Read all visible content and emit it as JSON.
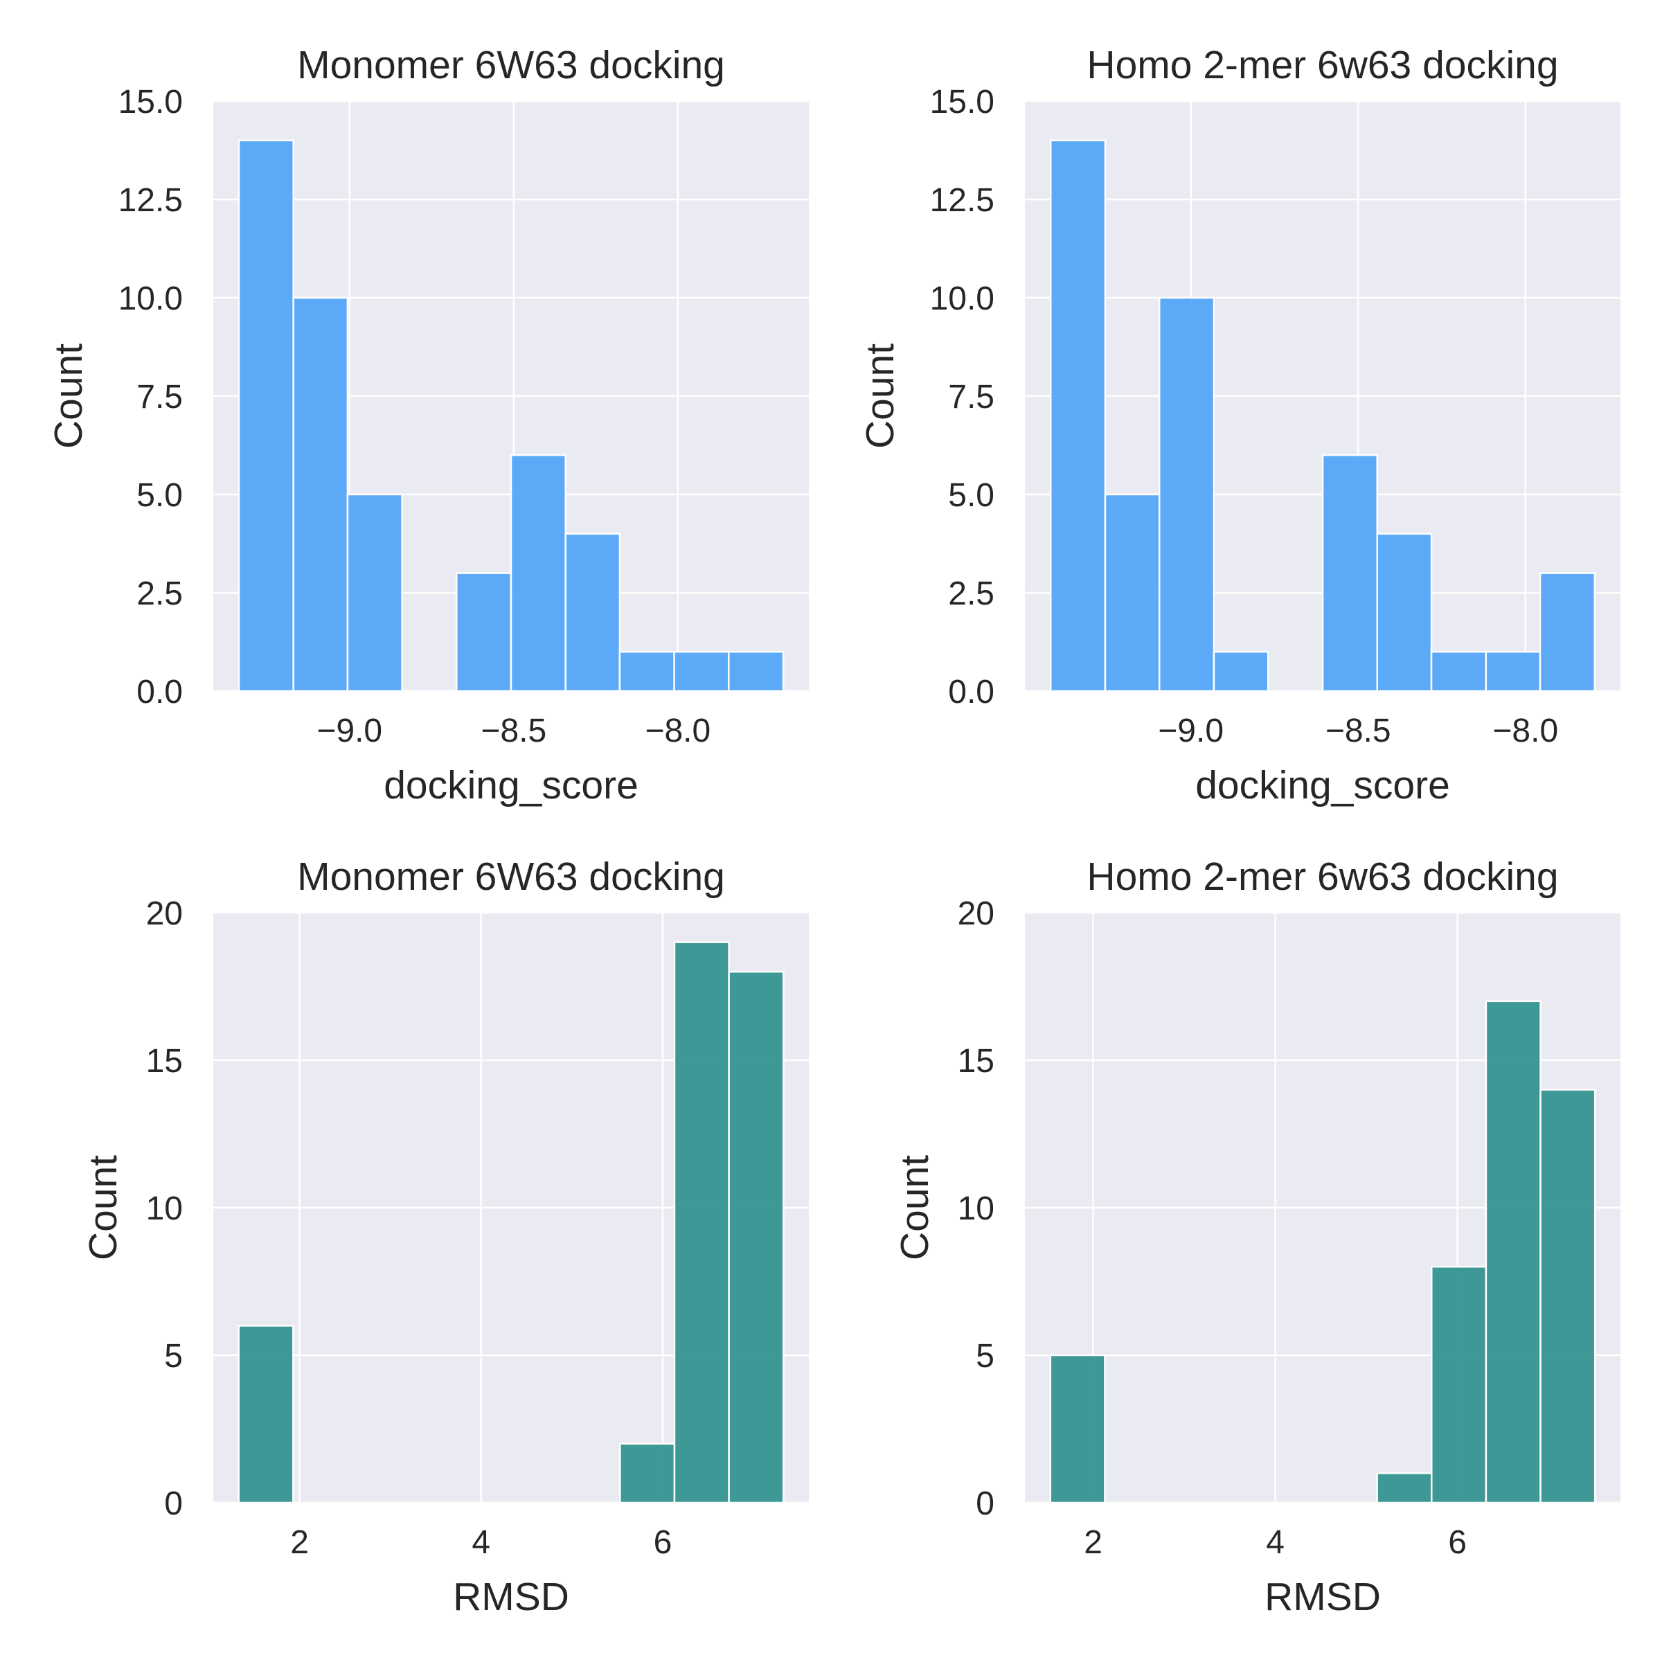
{
  "figure": {
    "background": "#ffffff",
    "axes_facecolor": "#eaeaf2",
    "grid_color": "#ffffff",
    "text_color": "#262626"
  },
  "chart_data": [
    {
      "type": "bar",
      "histogram": true,
      "title": "Monomer 6W63 docking",
      "xlabel": "docking_score",
      "ylabel": "Count",
      "color": "#4da3f7",
      "bin_edges": [
        -9.337,
        -9.171,
        -9.006,
        -8.84,
        -8.674,
        -8.508,
        -8.342,
        -8.177,
        -8.011,
        -7.845,
        -7.679
      ],
      "values": [
        14,
        10,
        5,
        0,
        3,
        6,
        4,
        1,
        1,
        1
      ],
      "xlim": [
        -9.415,
        -7.601
      ],
      "ylim": [
        0,
        15
      ],
      "xticks": [
        -9.0,
        -8.5,
        -8.0
      ],
      "xtick_labels": [
        "−9.0",
        "−8.5",
        "−8.0"
      ],
      "yticks": [
        0,
        2.5,
        5,
        7.5,
        10,
        12.5,
        15
      ],
      "ytick_labels": [
        "0.0",
        "2.5",
        "5.0",
        "7.5",
        "10.0",
        "12.5",
        "15.0"
      ],
      "grid": true
    },
    {
      "type": "bar",
      "histogram": true,
      "title": "Homo 2-mer 6w63 docking",
      "xlabel": "docking_score",
      "ylabel": "Count",
      "color": "#4da3f7",
      "bin_edges": [
        -9.419,
        -9.256,
        -9.094,
        -8.931,
        -8.769,
        -8.606,
        -8.443,
        -8.281,
        -8.118,
        -7.956,
        -7.793
      ],
      "values": [
        14,
        5,
        10,
        1,
        0,
        6,
        4,
        1,
        1,
        3
      ],
      "xlim": [
        -9.496,
        -7.716
      ],
      "ylim": [
        0,
        15
      ],
      "xticks": [
        -9.0,
        -8.5,
        -8.0
      ],
      "xtick_labels": [
        "−9.0",
        "−8.5",
        "−8.0"
      ],
      "yticks": [
        0,
        2.5,
        5,
        7.5,
        10,
        12.5,
        15
      ],
      "ytick_labels": [
        "0.0",
        "2.5",
        "5.0",
        "7.5",
        "10.0",
        "12.5",
        "15.0"
      ],
      "grid": true
    },
    {
      "type": "bar",
      "histogram": true,
      "title": "Monomer 6W63 docking",
      "xlabel": "RMSD",
      "ylabel": "Count",
      "color": "#2a8f8c",
      "bin_edges": [
        1.33,
        1.93,
        2.53,
        3.13,
        3.73,
        4.33,
        4.93,
        5.53,
        6.13,
        6.73,
        7.33
      ],
      "values": [
        6,
        0,
        0,
        0,
        0,
        0,
        0,
        2,
        19,
        18
      ],
      "xlim": [
        1.05,
        7.61
      ],
      "ylim": [
        0,
        20
      ],
      "xticks": [
        2,
        4,
        6
      ],
      "xtick_labels": [
        "2",
        "4",
        "6"
      ],
      "yticks": [
        0,
        5,
        10,
        15,
        20
      ],
      "ytick_labels": [
        "0",
        "5",
        "10",
        "15",
        "20"
      ],
      "grid": true
    },
    {
      "type": "bar",
      "histogram": true,
      "title": "Homo 2-mer 6w63 docking",
      "xlabel": "RMSD",
      "ylabel": "Count",
      "color": "#2a8f8c",
      "bin_edges": [
        1.53,
        2.128,
        2.726,
        3.324,
        3.922,
        4.52,
        5.118,
        5.716,
        6.314,
        6.912,
        7.51
      ],
      "values": [
        5,
        0,
        0,
        0,
        0,
        0,
        1,
        8,
        17,
        14
      ],
      "xlim": [
        1.25,
        7.79
      ],
      "ylim": [
        0,
        20
      ],
      "xticks": [
        2,
        4,
        6
      ],
      "xtick_labels": [
        "2",
        "4",
        "6"
      ],
      "yticks": [
        0,
        5,
        10,
        15,
        20
      ],
      "ytick_labels": [
        "0",
        "5",
        "10",
        "15",
        "20"
      ],
      "grid": true
    }
  ]
}
